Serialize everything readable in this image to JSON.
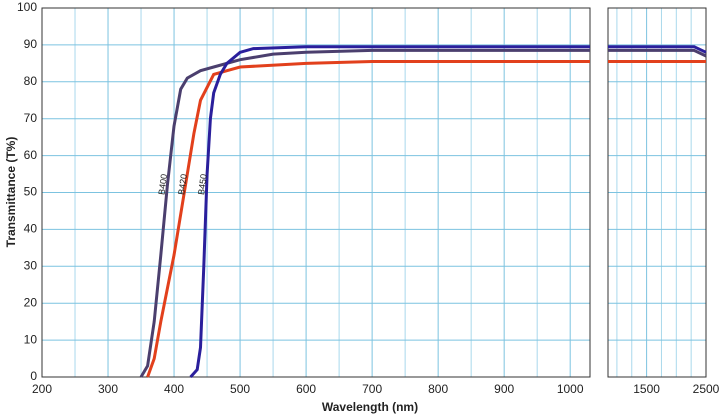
{
  "chart_data": [
    {
      "type": "line",
      "x_label": "Wavelength (nm)",
      "y_label": "Transmittance (T%)",
      "xlim": [
        200,
        1030
      ],
      "xticks": [
        200,
        300,
        400,
        500,
        600,
        700,
        800,
        900,
        1000
      ],
      "x_minor_ticks": [
        250,
        350,
        450,
        550,
        650,
        750,
        850,
        950
      ],
      "ylim": [
        0,
        100
      ],
      "yticks": [
        0,
        10,
        20,
        30,
        40,
        50,
        60,
        70,
        80,
        90,
        100
      ],
      "grid": true,
      "series": [
        {
          "name": "B400",
          "color": "#4b3f6e",
          "x": [
            350,
            360,
            370,
            380,
            390,
            400,
            410,
            420,
            440,
            460,
            500,
            550,
            600,
            700,
            1030
          ],
          "values": [
            0,
            3,
            15,
            33,
            52,
            68,
            78,
            81,
            83,
            84,
            86,
            87.5,
            88,
            88.5,
            88.5
          ]
        },
        {
          "name": "B420",
          "color": "#e2401c",
          "x": [
            360,
            370,
            380,
            400,
            420,
            430,
            440,
            460,
            480,
            500,
            600,
            700,
            1030
          ],
          "values": [
            0,
            5,
            15,
            33,
            55,
            66,
            75,
            82,
            83,
            84,
            85,
            85.5,
            85.5
          ]
        },
        {
          "name": "B450",
          "color": "#2a1f9c",
          "x": [
            425,
            435,
            440,
            445,
            450,
            455,
            460,
            470,
            480,
            500,
            520,
            600,
            1030
          ],
          "values": [
            0,
            2,
            8,
            30,
            55,
            70,
            77,
            82,
            85,
            88,
            89,
            89.5,
            89.5
          ]
        }
      ]
    },
    {
      "type": "line",
      "xlim": [
        850,
        2500
      ],
      "xticks": [
        1500,
        2500
      ],
      "x_minor_ticks": [
        1000,
        1250,
        1750,
        2000,
        2250
      ],
      "ylim": [
        0,
        100
      ],
      "grid": true,
      "series": [
        {
          "color": "#4b3f6e",
          "x": [
            850,
            2300,
            2500
          ],
          "values": [
            88.5,
            88.5,
            87
          ]
        },
        {
          "color": "#e2401c",
          "x": [
            850,
            2500
          ],
          "values": [
            85.5,
            85.5
          ]
        },
        {
          "color": "#2a1f9c",
          "x": [
            850,
            2300,
            2500
          ],
          "values": [
            89.5,
            89.5,
            88
          ]
        }
      ]
    }
  ]
}
